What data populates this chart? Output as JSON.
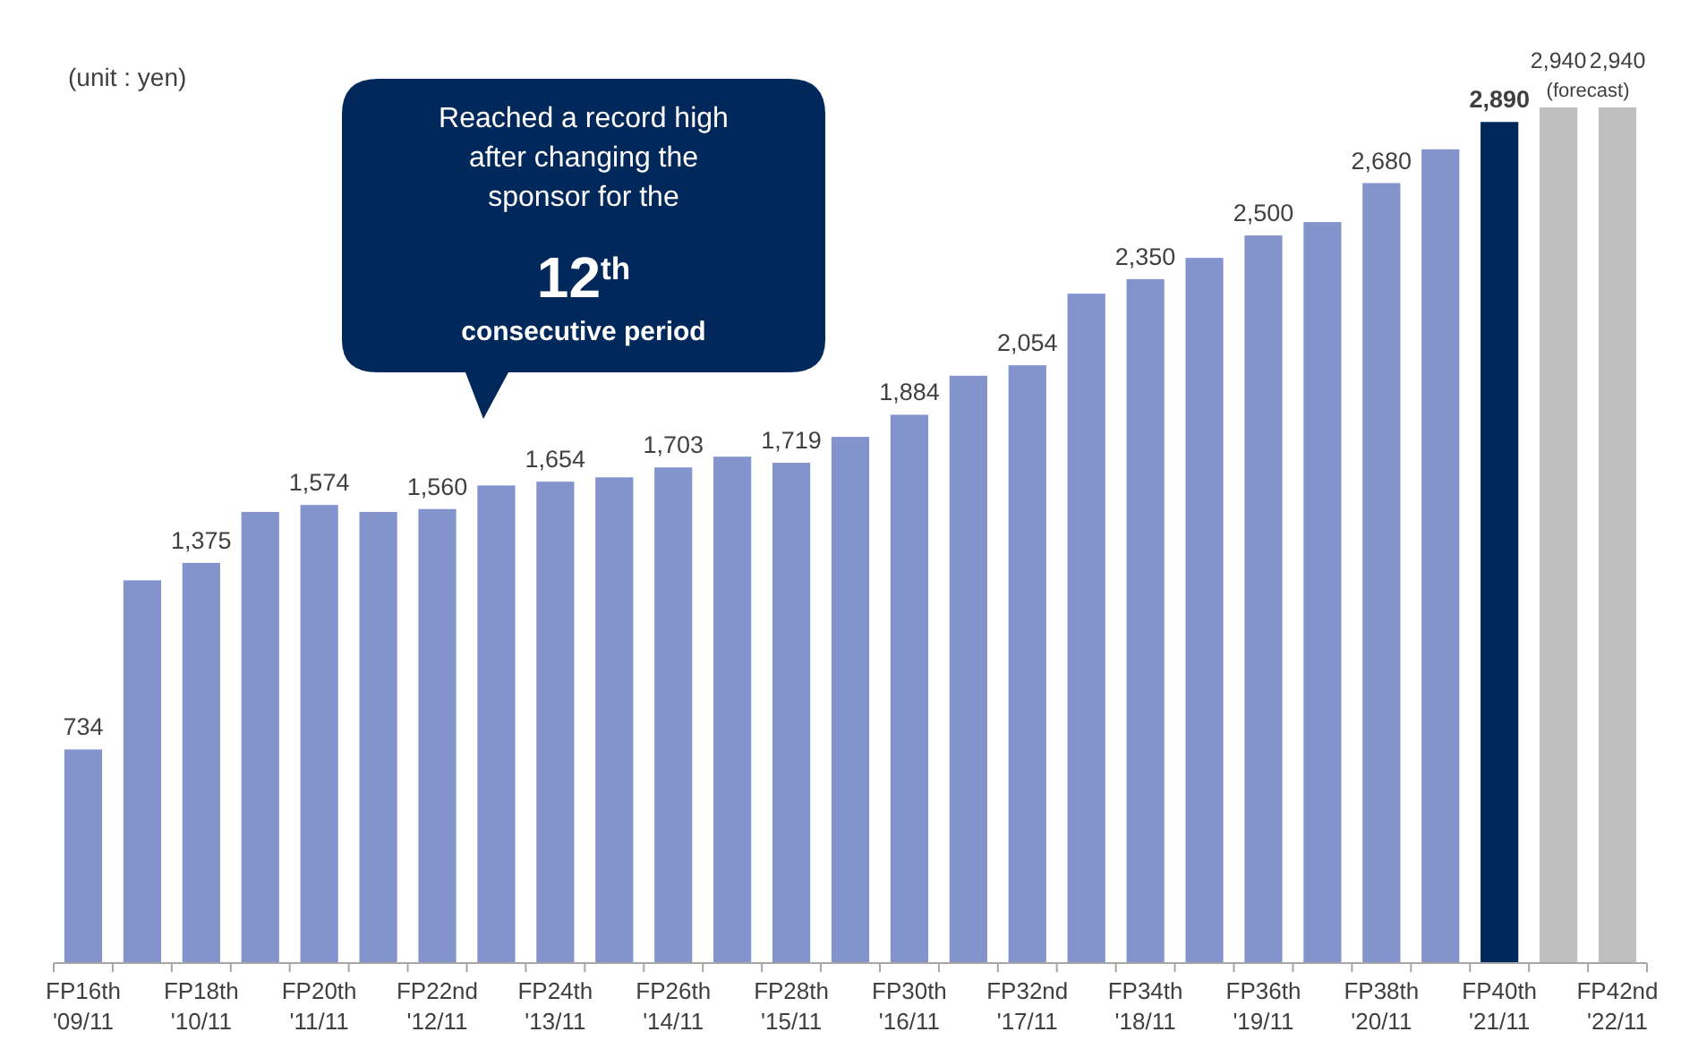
{
  "chart_data": {
    "type": "bar",
    "categories": [
      "FP16th '09/11",
      null,
      "FP18th '10/11",
      null,
      "FP20th '11/11",
      null,
      "FP22nd '12/11",
      null,
      "FP24th '13/11",
      null,
      "FP26th '14/11",
      null,
      "FP28th '15/11",
      null,
      "FP30th '16/11",
      null,
      "FP32nd '17/11",
      null,
      "FP34th '18/11",
      null,
      "FP36th '19/11",
      null,
      "FP38th '20/11",
      null,
      "FP40th '21/11",
      null,
      "FP42nd '22/11"
    ],
    "values": [
      734,
      1315,
      1375,
      1550,
      1574,
      1550,
      1560,
      1641,
      1654,
      1669,
      1703,
      1740,
      1719,
      1808,
      1884,
      2018,
      2054,
      2300,
      2350,
      2423,
      2500,
      2546,
      2680,
      2796,
      2890,
      2940,
      2940
    ],
    "colors": [
      "#8394cc",
      "#8394cc",
      "#8394cc",
      "#8394cc",
      "#8394cc",
      "#8394cc",
      "#8394cc",
      "#8394cc",
      "#8394cc",
      "#8394cc",
      "#8394cc",
      "#8394cc",
      "#8394cc",
      "#8394cc",
      "#8394cc",
      "#8394cc",
      "#8394cc",
      "#8394cc",
      "#8394cc",
      "#8394cc",
      "#8394cc",
      "#8394cc",
      "#8394cc",
      "#8394cc",
      "#00285a",
      "#bfbfbf",
      "#bfbfbf"
    ],
    "value_labels": [
      "734",
      null,
      "1,375",
      null,
      "1,574",
      null,
      "1,560",
      null,
      "1,654",
      null,
      "1,703",
      null,
      "1,719",
      null,
      "1,884",
      null,
      "2,054",
      null,
      "2,350",
      null,
      "2,500",
      null,
      "2,680",
      null,
      "2,890",
      "2,940",
      "2,940"
    ],
    "annotations": [
      "(unit : yen)",
      "Reached a record high after changing the sponsor for the",
      "12$^{th}$",
      "consecutive period",
      "(forecast)"
    ]
  }
}
